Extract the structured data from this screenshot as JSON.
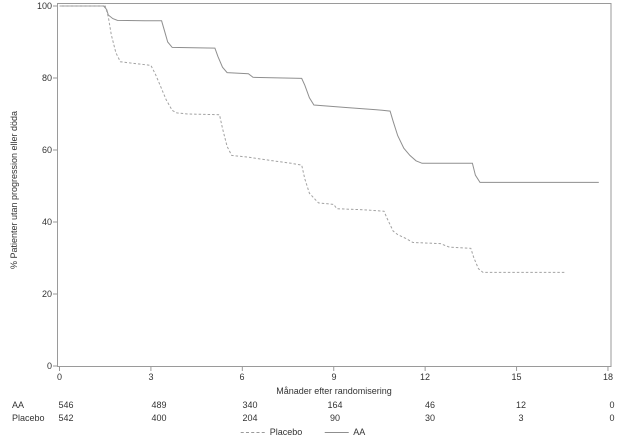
{
  "chart_data": {
    "type": "line",
    "subtype": "kaplan-meier-step",
    "title": "",
    "xlabel": "Månader efter randomisering",
    "ylabel": "% Patienter utan progression eller döda",
    "xlim": [
      0,
      18
    ],
    "ylim": [
      0,
      100
    ],
    "x_ticks": [
      0,
      3,
      6,
      9,
      12,
      15,
      18
    ],
    "y_ticks": [
      0,
      20,
      40,
      60,
      80,
      100
    ],
    "grid": false,
    "frame": true,
    "legend_position": "bottom-center",
    "series": [
      {
        "name": "AA",
        "style": "solid",
        "color": "#8f8f8f",
        "points": [
          [
            0,
            100
          ],
          [
            1.45,
            100
          ],
          [
            1.55,
            99
          ],
          [
            1.6,
            97.5
          ],
          [
            1.75,
            96.5
          ],
          [
            1.9,
            96
          ],
          [
            2.8,
            95.9
          ],
          [
            3.35,
            95.9
          ],
          [
            3.45,
            93
          ],
          [
            3.55,
            90
          ],
          [
            3.7,
            88.5
          ],
          [
            5.1,
            88.3
          ],
          [
            5.2,
            86
          ],
          [
            5.35,
            83
          ],
          [
            5.5,
            81.5
          ],
          [
            6.2,
            81.2
          ],
          [
            6.35,
            80.2
          ],
          [
            7.95,
            79.9
          ],
          [
            8.05,
            78
          ],
          [
            8.2,
            74.5
          ],
          [
            8.35,
            72.5
          ],
          [
            9.4,
            71.8
          ],
          [
            10.4,
            71.2
          ],
          [
            10.85,
            70.8
          ],
          [
            10.95,
            68
          ],
          [
            11.1,
            64
          ],
          [
            11.3,
            60.5
          ],
          [
            11.5,
            58.5
          ],
          [
            11.7,
            57
          ],
          [
            11.9,
            56.3
          ],
          [
            13.55,
            56.3
          ],
          [
            13.65,
            53
          ],
          [
            13.8,
            51
          ],
          [
            17.7,
            51
          ]
        ]
      },
      {
        "name": "Placebo",
        "style": "dashed",
        "color": "#a2a2a2",
        "points": [
          [
            0,
            100
          ],
          [
            1.5,
            100
          ],
          [
            1.6,
            97
          ],
          [
            1.7,
            92
          ],
          [
            1.85,
            87
          ],
          [
            2.0,
            84.5
          ],
          [
            2.5,
            84
          ],
          [
            3.0,
            83.5
          ],
          [
            3.15,
            81
          ],
          [
            3.3,
            78
          ],
          [
            3.5,
            74
          ],
          [
            3.7,
            71
          ],
          [
            3.85,
            70.3
          ],
          [
            4.2,
            70
          ],
          [
            5.25,
            69.8
          ],
          [
            5.35,
            66
          ],
          [
            5.5,
            61
          ],
          [
            5.65,
            58.5
          ],
          [
            6.2,
            58
          ],
          [
            7.0,
            57
          ],
          [
            7.6,
            56.3
          ],
          [
            7.95,
            55.8
          ],
          [
            8.05,
            52
          ],
          [
            8.2,
            48
          ],
          [
            8.4,
            46.2
          ],
          [
            8.5,
            45.3
          ],
          [
            9.0,
            44.9
          ],
          [
            9.1,
            43.7
          ],
          [
            10.0,
            43.4
          ],
          [
            10.65,
            43
          ],
          [
            10.75,
            41
          ],
          [
            10.95,
            37.5
          ],
          [
            11.1,
            36.5
          ],
          [
            11.35,
            35.5
          ],
          [
            11.6,
            34.3
          ],
          [
            12.5,
            34
          ],
          [
            12.8,
            33
          ],
          [
            13.5,
            32.7
          ],
          [
            13.6,
            30
          ],
          [
            13.75,
            27
          ],
          [
            13.9,
            26
          ],
          [
            16.6,
            26
          ]
        ]
      }
    ]
  },
  "axes": {
    "x_title": "Månader efter randomisering",
    "y_title": "% Patienter utan progression eller döda"
  },
  "risk_table": {
    "rows": [
      {
        "name": "AA",
        "values": [
          "546",
          "489",
          "340",
          "164",
          "46",
          "12",
          "0"
        ]
      },
      {
        "name": "Placebo",
        "values": [
          "542",
          "400",
          "204",
          "90",
          "30",
          "3",
          "0"
        ]
      }
    ]
  },
  "legend": {
    "items": [
      {
        "label": "Placebo",
        "style": "dashed"
      },
      {
        "label": "AA",
        "style": "solid"
      }
    ]
  },
  "colors": {
    "curve_aa": "#8f8f8f",
    "curve_placebo": "#a2a2a2",
    "axis": "#9a9a9a",
    "text": "#333333",
    "background": "#ffffff"
  }
}
